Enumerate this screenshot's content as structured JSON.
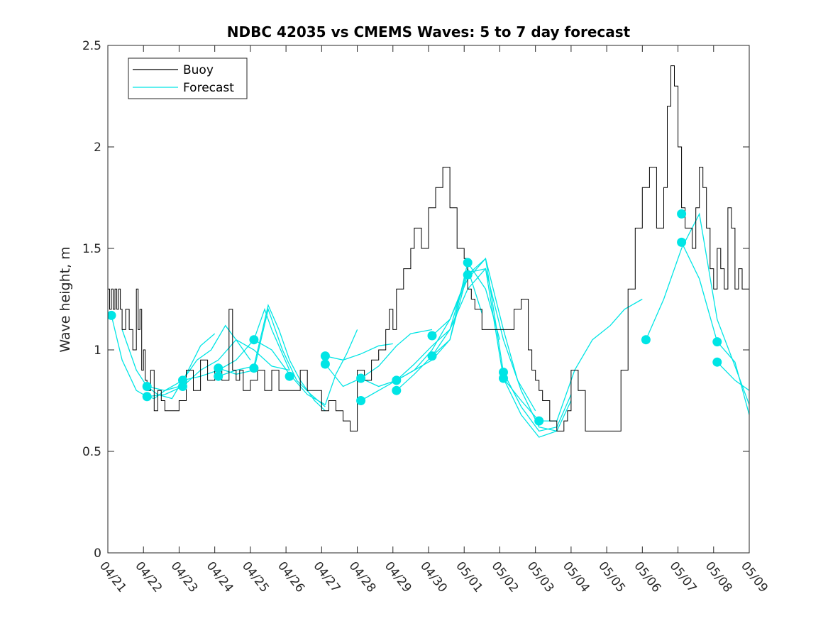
{
  "chart_data": {
    "type": "line",
    "title": "NDBC 42035 vs CMEMS Waves: 5 to 7 day forecast",
    "xlabel": "",
    "ylabel": "Wave height, m",
    "xlim": [
      0,
      18
    ],
    "ylim": [
      0,
      2.5
    ],
    "x_tick_labels": [
      "04/21",
      "04/22",
      "04/23",
      "04/24",
      "04/25",
      "04/26",
      "04/27",
      "04/28",
      "04/29",
      "04/30",
      "05/01",
      "05/02",
      "05/03",
      "05/04",
      "05/05",
      "05/06",
      "05/07",
      "05/08",
      "05/09"
    ],
    "y_ticks": [
      0,
      0.5,
      1,
      1.5,
      2,
      2.5
    ],
    "y_tick_labels": [
      "0",
      "0.5",
      "1",
      "1.5",
      "2",
      "2.5"
    ],
    "grid": false,
    "legend_position": "top-left",
    "legend": [
      {
        "label": "Buoy",
        "color": "#000000"
      },
      {
        "label": "Forecast",
        "color": "#00e5e5"
      }
    ],
    "series": [
      {
        "name": "Buoy",
        "color": "#000000",
        "x": [
          0,
          0.05,
          0.1,
          0.15,
          0.2,
          0.25,
          0.3,
          0.35,
          0.4,
          0.5,
          0.6,
          0.7,
          0.8,
          0.85,
          0.9,
          0.95,
          1.0,
          1.05,
          1.1,
          1.2,
          1.3,
          1.4,
          1.5,
          1.6,
          1.8,
          2.0,
          2.2,
          2.4,
          2.6,
          2.8,
          3.0,
          3.2,
          3.4,
          3.5,
          3.6,
          3.7,
          3.8,
          4.0,
          4.2,
          4.4,
          4.6,
          4.8,
          5.0,
          5.2,
          5.4,
          5.6,
          5.8,
          6.0,
          6.2,
          6.4,
          6.6,
          6.8,
          7.0,
          7.2,
          7.4,
          7.6,
          7.8,
          7.9,
          8.0,
          8.1,
          8.3,
          8.5,
          8.6,
          8.8,
          9.0,
          9.2,
          9.4,
          9.6,
          9.8,
          10.0,
          10.1,
          10.2,
          10.3,
          10.5,
          10.6,
          10.7,
          10.8,
          11.0,
          11.2,
          11.4,
          11.6,
          11.8,
          11.9,
          12.0,
          12.1,
          12.2,
          12.4,
          12.6,
          12.8,
          12.9,
          13.0,
          13.2,
          13.4,
          13.6,
          13.8,
          14.0,
          14.2,
          14.4,
          14.6,
          14.8,
          15.0,
          15.2,
          15.4,
          15.6,
          15.7,
          15.8,
          15.9,
          16.0,
          16.1,
          16.2,
          16.3,
          16.4,
          16.5,
          16.6,
          16.7,
          16.8,
          16.9,
          17.0,
          17.1,
          17.2,
          17.3,
          17.4,
          17.5,
          17.6,
          17.7,
          17.8,
          17.9,
          18.0
        ],
        "y": [
          1.3,
          1.2,
          1.3,
          1.2,
          1.3,
          1.2,
          1.3,
          1.2,
          1.1,
          1.2,
          1.1,
          1.0,
          1.3,
          1.1,
          1.2,
          0.9,
          1.0,
          0.85,
          0.8,
          0.9,
          0.7,
          0.8,
          0.75,
          0.7,
          0.7,
          0.75,
          0.9,
          0.8,
          0.95,
          0.85,
          0.9,
          0.85,
          1.2,
          0.9,
          0.85,
          0.9,
          0.8,
          0.85,
          0.9,
          0.8,
          0.9,
          0.8,
          0.8,
          0.8,
          0.9,
          0.8,
          0.8,
          0.7,
          0.75,
          0.7,
          0.65,
          0.6,
          0.9,
          0.85,
          0.95,
          1.0,
          1.1,
          1.2,
          1.1,
          1.3,
          1.4,
          1.5,
          1.6,
          1.5,
          1.7,
          1.8,
          1.9,
          1.7,
          1.5,
          1.45,
          1.3,
          1.25,
          1.2,
          1.1,
          1.1,
          1.1,
          1.1,
          1.1,
          1.1,
          1.2,
          1.25,
          1.0,
          0.9,
          0.85,
          0.8,
          0.75,
          0.65,
          0.6,
          0.65,
          0.7,
          0.9,
          0.8,
          0.6,
          0.6,
          0.6,
          0.6,
          0.6,
          0.9,
          1.3,
          1.6,
          1.8,
          1.9,
          1.6,
          1.8,
          2.2,
          2.4,
          2.3,
          2.0,
          1.7,
          1.6,
          1.6,
          1.5,
          1.7,
          1.9,
          1.8,
          1.6,
          1.4,
          1.3,
          1.5,
          1.4,
          1.3,
          1.7,
          1.6,
          1.3,
          1.4,
          1.3,
          1.3,
          1.3
        ]
      },
      {
        "name": "Forecast",
        "color": "#00e5e5",
        "segments": [
          {
            "x": [
              0.1,
              0.4,
              0.8,
              1.1,
              1.3,
              1.6,
              2.0
            ],
            "y": [
              1.17,
              0.95,
              0.8,
              0.77,
              0.76,
              0.8,
              0.82
            ]
          },
          {
            "x": [
              0.4,
              0.8,
              1.1,
              1.4,
              1.8,
              2.2,
              2.6,
              3.0
            ],
            "y": [
              1.1,
              0.9,
              0.82,
              0.78,
              0.76,
              0.88,
              1.02,
              1.08
            ]
          },
          {
            "x": [
              1.1,
              1.6,
              2.1,
              2.5,
              2.9,
              3.3,
              3.6,
              4.0
            ],
            "y": [
              0.82,
              0.8,
              0.85,
              0.95,
              1.0,
              1.12,
              1.05,
              0.95
            ]
          },
          {
            "x": [
              1.1,
              1.6,
              2.1,
              2.6,
              3.1,
              3.6,
              4.1,
              4.6,
              5.1
            ],
            "y": [
              0.77,
              0.78,
              0.82,
              0.9,
              0.95,
              1.05,
              1.0,
              0.92,
              0.9
            ]
          },
          {
            "x": [
              2.1,
              2.6,
              3.1,
              3.6,
              4.1,
              4.4,
              4.6,
              5.1
            ],
            "y": [
              0.85,
              0.87,
              0.9,
              0.95,
              1.05,
              1.2,
              1.1,
              0.9
            ]
          },
          {
            "x": [
              3.1,
              3.6,
              4.1,
              4.5,
              4.8,
              5.1,
              5.4,
              5.8,
              6.1
            ],
            "y": [
              0.87,
              0.9,
              0.92,
              1.22,
              1.1,
              0.95,
              0.85,
              0.75,
              0.7
            ]
          },
          {
            "x": [
              3.1,
              3.6,
              4.1,
              4.5,
              4.9,
              5.3,
              5.7,
              6.1
            ],
            "y": [
              0.91,
              0.88,
              0.9,
              1.2,
              1.0,
              0.85,
              0.78,
              0.72
            ]
          },
          {
            "x": [
              4.1,
              4.6,
              5.1,
              5.6,
              6.1,
              6.4,
              6.7,
              7.0
            ],
            "y": [
              1.05,
              1.0,
              0.88,
              0.78,
              0.73,
              0.88,
              0.98,
              1.1
            ]
          },
          {
            "x": [
              6.1,
              6.6,
              7.1,
              7.6,
              8.0
            ],
            "y": [
              0.97,
              0.95,
              0.98,
              1.02,
              1.03
            ]
          },
          {
            "x": [
              6.1,
              6.6,
              7.1,
              7.6,
              8.1,
              8.5,
              9.1
            ],
            "y": [
              0.93,
              0.82,
              0.86,
              0.92,
              1.02,
              1.08,
              1.1
            ]
          },
          {
            "x": [
              7.1,
              7.6,
              8.1,
              8.6,
              9.1,
              9.6,
              10.1,
              10.5
            ],
            "y": [
              0.86,
              0.82,
              0.85,
              0.93,
              1.02,
              1.1,
              1.4,
              1.18
            ]
          },
          {
            "x": [
              7.1,
              7.6,
              8.1,
              8.6,
              9.1,
              9.6,
              10.1,
              10.6,
              11.0
            ],
            "y": [
              0.75,
              0.8,
              0.85,
              0.9,
              0.95,
              1.05,
              1.43,
              1.3,
              1.05
            ]
          },
          {
            "x": [
              8.1,
              8.6,
              9.1,
              9.6,
              10.1,
              10.6,
              11.1,
              11.5,
              12.0
            ],
            "y": [
              0.85,
              0.9,
              1.0,
              1.15,
              1.37,
              1.45,
              1.1,
              0.85,
              0.7
            ]
          },
          {
            "x": [
              8.1,
              8.6,
              9.1,
              9.6,
              10.1,
              10.6,
              11.1,
              11.6,
              12.1,
              12.6
            ],
            "y": [
              0.8,
              0.88,
              0.97,
              1.1,
              1.3,
              1.4,
              1.05,
              0.8,
              0.62,
              0.6
            ]
          },
          {
            "x": [
              9.1,
              9.6,
              10.1,
              10.6,
              11.1,
              11.6,
              12.1,
              12.6,
              13.0
            ],
            "y": [
              1.07,
              1.15,
              1.35,
              1.45,
              0.89,
              0.72,
              0.6,
              0.62,
              0.78
            ]
          },
          {
            "x": [
              9.1,
              9.6,
              10.1,
              10.6,
              11.1,
              11.6,
              12.1,
              12.6,
              13.0
            ],
            "y": [
              0.97,
              1.05,
              1.38,
              1.4,
              0.86,
              0.68,
              0.57,
              0.6,
              0.75
            ]
          },
          {
            "x": [
              11.1,
              11.6,
              12.1,
              12.6,
              13.1,
              13.6,
              14.1,
              14.5,
              15.0
            ],
            "y": [
              0.86,
              0.75,
              0.65,
              0.65,
              0.9,
              1.05,
              1.12,
              1.2,
              1.25
            ]
          },
          {
            "x": [
              15.1,
              15.6,
              16.1,
              16.6,
              17.1,
              17.6,
              18.0
            ],
            "y": [
              1.05,
              1.25,
              1.5,
              1.67,
              1.15,
              0.92,
              0.73
            ]
          },
          {
            "x": [
              16.1,
              16.6,
              17.1,
              17.6,
              18.0
            ],
            "y": [
              1.53,
              1.35,
              1.04,
              0.94,
              0.68
            ]
          },
          {
            "x": [
              17.1,
              17.6,
              18.0
            ],
            "y": [
              0.94,
              0.85,
              0.8
            ]
          }
        ],
        "markers": {
          "x": [
            0.1,
            1.1,
            1.1,
            2.1,
            2.1,
            3.1,
            3.1,
            4.1,
            4.1,
            5.1,
            6.1,
            6.1,
            7.1,
            7.1,
            8.1,
            8.1,
            9.1,
            9.1,
            10.1,
            10.1,
            11.1,
            11.1,
            12.1,
            15.1,
            16.1,
            16.1,
            17.1,
            17.1
          ],
          "y": [
            1.17,
            0.82,
            0.77,
            0.85,
            0.82,
            0.91,
            0.87,
            1.05,
            0.91,
            0.87,
            0.97,
            0.93,
            0.86,
            0.75,
            0.85,
            0.8,
            1.07,
            0.97,
            1.43,
            1.37,
            0.89,
            0.86,
            0.65,
            1.05,
            1.67,
            1.53,
            1.04,
            0.94
          ]
        }
      }
    ]
  }
}
